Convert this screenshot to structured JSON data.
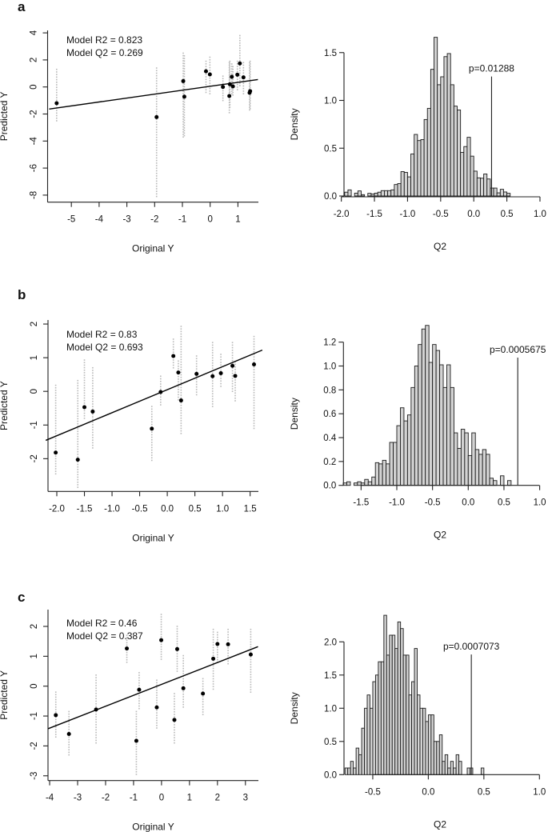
{
  "figure": {
    "panels": [
      {
        "label": "a",
        "scatter": {
          "type": "scatter",
          "xlabel": "Original Y",
          "ylabel": "Predicted Y",
          "xticks": [
            -5,
            -4,
            -3,
            -2,
            -1,
            0,
            1
          ],
          "yticks": [
            4,
            2,
            0,
            -2,
            -4,
            -6,
            -8
          ],
          "xlim": [
            -5.8,
            1.72
          ],
          "ylim": [
            -8.2,
            4.0
          ],
          "annotation_r2": "Model R2 = 0.823",
          "annotation_q2": "Model Q2 = 0.269",
          "regression": {
            "slope": 0.29,
            "intercept": 0.05
          },
          "points": [
            {
              "x": -5.53,
              "y": -1.2,
              "cv_range": [
                -2.5,
                1.3
              ]
            },
            {
              "x": -1.93,
              "y": -2.23,
              "cv_range": [
                -8.1,
                1.4
              ]
            },
            {
              "x": -0.97,
              "y": 0.43,
              "cv_range": [
                -3.7,
                2.5
              ]
            },
            {
              "x": -0.93,
              "y": -0.72,
              "cv_range": [
                -3.6,
                2.3
              ]
            },
            {
              "x": -0.15,
              "y": 1.16,
              "cv_range": [
                -0.4,
                1.9
              ]
            },
            {
              "x": -0.01,
              "y": 0.93,
              "cv_range": [
                -0.5,
                2.2
              ]
            },
            {
              "x": 0.46,
              "y": 0.0,
              "cv_range": [
                -1.0,
                0.8
              ]
            },
            {
              "x": 0.69,
              "y": -0.67,
              "cv_range": [
                -1.9,
                1.8
              ]
            },
            {
              "x": 0.71,
              "y": 0.2,
              "cv_range": [
                -1.5,
                1.9
              ]
            },
            {
              "x": 0.78,
              "y": 0.75,
              "cv_range": [
                -0.5,
                1.7
              ]
            },
            {
              "x": 0.82,
              "y": 0.04,
              "cv_range": [
                -0.6,
                1.5
              ]
            },
            {
              "x": 0.98,
              "y": 0.91,
              "cv_range": [
                -0.2,
                1.9
              ]
            },
            {
              "x": 1.07,
              "y": 1.74,
              "cv_range": [
                0.1,
                3.8
              ]
            },
            {
              "x": 1.2,
              "y": 0.71,
              "cv_range": [
                -0.5,
                1.8
              ]
            },
            {
              "x": 1.42,
              "y": -0.43,
              "cv_range": [
                -1.7,
                1.8
              ]
            },
            {
              "x": 1.44,
              "y": -0.31,
              "cv_range": [
                -1.6,
                1.9
              ]
            }
          ]
        },
        "histogram": {
          "type": "bar",
          "xlabel": "Q2",
          "ylabel": "Density",
          "xticks": [
            "-2.0",
            "-1.5",
            "-1.0",
            "-0.5",
            "0.0",
            "0.5",
            "1.0"
          ],
          "yticks": [
            "0.0",
            "0.5",
            "1.0",
            "1.5"
          ],
          "xlim": [
            -2.0,
            1.0
          ],
          "ylim": [
            0,
            1.5
          ],
          "bin_start": -2.0,
          "bin_width": 0.05,
          "densities": [
            0.0,
            0.04,
            0.064,
            0.0,
            0.03,
            0.053,
            0.014,
            0.0,
            0.028,
            0.02,
            0.03,
            0.04,
            0.056,
            0.056,
            0.056,
            0.064,
            0.12,
            0.13,
            0.255,
            0.247,
            0.2,
            0.44,
            0.644,
            0.58,
            0.59,
            0.8,
            0.917,
            1.325,
            1.66,
            1.164,
            1.247,
            1.458,
            1.49,
            1.164,
            0.94,
            0.9,
            0.456,
            0.517,
            0.614,
            0.417,
            0.26,
            0.19,
            0.186,
            0.23,
            0.178,
            0.083,
            0.083,
            0.033,
            0.07,
            0.042,
            0.028
          ],
          "observed_q2": 0.269,
          "p_line_height": 1.25,
          "p_label": "p=0.01288"
        }
      },
      {
        "label": "b",
        "scatter": {
          "type": "scatter",
          "xlabel": "Original Y",
          "ylabel": "Predicted Y",
          "xticks": [
            "-2.0",
            "-1.5",
            "-1.0",
            "-0.5",
            "0.0",
            "0.5",
            "1.0",
            "1.5"
          ],
          "yticks": [
            2,
            1,
            0,
            -1,
            -2
          ],
          "xlim": [
            -2.2,
            1.72
          ],
          "ylim": [
            -2.95,
            2.1
          ],
          "annotation_r2": "Model R2 = 0.83",
          "annotation_q2": "Model Q2 = 0.693",
          "regression": {
            "slope": 0.684,
            "intercept": 0.05
          },
          "points": [
            {
              "x": -2.02,
              "y": -1.82,
              "cv_range": [
                -2.45,
                0.18
              ]
            },
            {
              "x": -1.62,
              "y": -2.03,
              "cv_range": [
                -2.85,
                0.32
              ]
            },
            {
              "x": -1.5,
              "y": -0.47,
              "cv_range": [
                -0.8,
                0.93
              ]
            },
            {
              "x": -1.35,
              "y": -0.6,
              "cv_range": [
                -1.68,
                0.7
              ]
            },
            {
              "x": -0.28,
              "y": -1.11,
              "cv_range": [
                -2.05,
                -0.45
              ]
            },
            {
              "x": -0.12,
              "y": -0.02,
              "cv_range": [
                -0.4,
                0.45
              ]
            },
            {
              "x": 0.11,
              "y": 1.05,
              "cv_range": [
                0.7,
                1.55
              ]
            },
            {
              "x": 0.2,
              "y": 0.56,
              "cv_range": [
                -0.25,
                0.9
              ]
            },
            {
              "x": 0.25,
              "y": -0.27,
              "cv_range": [
                -1.25,
                1.93
              ]
            },
            {
              "x": 0.53,
              "y": 0.52,
              "cv_range": [
                -0.1,
                1.05
              ]
            },
            {
              "x": 0.82,
              "y": 0.45,
              "cv_range": [
                -0.45,
                1.45
              ]
            },
            {
              "x": 0.97,
              "y": 0.54,
              "cv_range": [
                0.15,
                1.1
              ]
            },
            {
              "x": 1.18,
              "y": 0.76,
              "cv_range": [
                0.0,
                1.45
              ]
            },
            {
              "x": 1.23,
              "y": 0.46,
              "cv_range": [
                -0.28,
                0.88
              ]
            },
            {
              "x": 1.57,
              "y": 0.8,
              "cv_range": [
                -1.1,
                1.63
              ]
            }
          ]
        },
        "histogram": {
          "type": "bar",
          "xlabel": "Q2",
          "ylabel": "Density",
          "xticks": [
            "-1.5",
            "-1.0",
            "-0.5",
            "0.0",
            "0.5",
            "1.0"
          ],
          "yticks": [
            "0.0",
            "0.2",
            "0.4",
            "0.6",
            "0.8",
            "1.0",
            "1.2"
          ],
          "xlim": [
            -1.75,
            1.0
          ],
          "ylim": [
            0,
            1.2
          ],
          "bin_start": -1.75,
          "bin_width": 0.05,
          "densities": [
            0.02,
            0.03,
            0.0,
            0.02,
            0.03,
            0.02,
            0.05,
            0.03,
            0.07,
            0.19,
            0.18,
            0.21,
            0.18,
            0.36,
            0.36,
            0.5,
            0.65,
            0.54,
            0.59,
            0.82,
            1.0,
            1.18,
            1.31,
            1.34,
            1.03,
            1.18,
            1.13,
            1.01,
            0.82,
            1.01,
            0.82,
            0.44,
            0.31,
            0.47,
            0.44,
            0.25,
            0.44,
            0.3,
            0.26,
            0.3,
            0.26,
            0.06,
            0.04,
            0.0,
            0.08,
            0.0,
            0.04
          ],
          "observed_q2": 0.693,
          "p_line_height": 1.07,
          "p_label": "p=0.0005675"
        }
      },
      {
        "label": "c",
        "scatter": {
          "type": "scatter",
          "xlabel": "Original Y",
          "ylabel": "Predicted Y",
          "xticks": [
            -4,
            -3,
            -2,
            -1,
            0,
            1,
            2,
            3
          ],
          "yticks": [
            2,
            1,
            0,
            -1,
            -2,
            -3
          ],
          "xlim": [
            -4.05,
            3.45
          ],
          "ylim": [
            -3.1,
            2.5
          ],
          "annotation_r2": "Model R2 = 0.46",
          "annotation_q2": "Model Q2 = 0.387",
          "regression": {
            "slope": 0.366,
            "intercept": 0.06
          },
          "points": [
            {
              "x": -3.78,
              "y": -0.97,
              "cv_range": [
                -1.7,
                -0.2
              ]
            },
            {
              "x": -3.31,
              "y": -1.6,
              "cv_range": [
                -2.3,
                -0.85
              ]
            },
            {
              "x": -2.34,
              "y": -0.78,
              "cv_range": [
                -1.9,
                0.37
              ]
            },
            {
              "x": -1.24,
              "y": 1.26,
              "cv_range": [
                0.8,
                1.7
              ]
            },
            {
              "x": -0.9,
              "y": -1.83,
              "cv_range": [
                -2.95,
                -0.85
              ]
            },
            {
              "x": -0.8,
              "y": -0.12,
              "cv_range": [
                -0.75,
                0.45
              ]
            },
            {
              "x": -0.17,
              "y": -0.71,
              "cv_range": [
                -1.4,
                0.2
              ]
            },
            {
              "x": -0.01,
              "y": 1.54,
              "cv_range": [
                0.9,
                2.4
              ]
            },
            {
              "x": 0.46,
              "y": -1.13,
              "cv_range": [
                -1.9,
                -0.25
              ]
            },
            {
              "x": 0.56,
              "y": 1.24,
              "cv_range": [
                0.5,
                2.0
              ]
            },
            {
              "x": 0.78,
              "y": -0.07,
              "cv_range": [
                -0.7,
                1.02
              ]
            },
            {
              "x": 1.48,
              "y": -0.25,
              "cv_range": [
                -0.95,
                0.25
              ]
            },
            {
              "x": 1.85,
              "y": 0.92,
              "cv_range": [
                -0.1,
                1.9
              ]
            },
            {
              "x": 2.0,
              "y": 1.41,
              "cv_range": [
                0.8,
                1.8
              ]
            },
            {
              "x": 2.38,
              "y": 1.4,
              "cv_range": [
                0.75,
                1.9
              ]
            },
            {
              "x": 3.19,
              "y": 1.06,
              "cv_range": [
                -0.2,
                1.9
              ]
            }
          ]
        },
        "histogram": {
          "type": "bar",
          "xlabel": "Q2",
          "ylabel": "Density",
          "xticks": [
            "-0.5",
            "0.0",
            "0.5",
            "1.0"
          ],
          "yticks": [
            "0.0",
            "0.5",
            "1.0",
            "1.5",
            "2.0"
          ],
          "xlim": [
            -0.75,
            1.0
          ],
          "ylim": [
            0,
            2.0
          ],
          "bin_start": -0.75,
          "bin_width": 0.025,
          "densities": [
            0.1,
            0.1,
            0.2,
            0.1,
            0.4,
            0.3,
            0.7,
            1.0,
            1.2,
            1.0,
            1.4,
            1.5,
            1.7,
            1.7,
            2.4,
            1.8,
            2.1,
            2.1,
            1.9,
            2.3,
            2.2,
            1.8,
            1.8,
            1.2,
            1.4,
            1.9,
            1.2,
            1.0,
            1.0,
            0.8,
            0.9,
            0.9,
            0.5,
            0.5,
            0.6,
            0.2,
            0.3,
            0.1,
            0.2,
            0.1,
            0.3,
            0.2,
            0.0,
            0.0,
            0.1,
            0.1,
            0.0,
            0.0,
            0.0,
            0.1
          ],
          "observed_q2": 0.387,
          "p_line_height": 1.81,
          "p_label": "p=0.0007073"
        }
      }
    ]
  },
  "chart_data": [
    {
      "type": "scatter",
      "panel": "a",
      "title": "",
      "xlabel": "Original Y",
      "ylabel": "Predicted Y",
      "xlim": [
        -5.8,
        1.72
      ],
      "ylim": [
        -8.2,
        4.0
      ],
      "annotations": [
        "Model R2 = 0.823",
        "Model Q2 = 0.269"
      ],
      "grid": false
    },
    {
      "type": "bar",
      "panel": "a",
      "title": "",
      "xlabel": "Q2",
      "ylabel": "Density",
      "xlim": [
        -2.0,
        1.0
      ],
      "ylim": [
        0,
        1.5
      ],
      "annotations": [
        "p=0.01288"
      ],
      "grid": false
    },
    {
      "type": "scatter",
      "panel": "b",
      "title": "",
      "xlabel": "Original Y",
      "ylabel": "Predicted Y",
      "xlim": [
        -2.2,
        1.72
      ],
      "ylim": [
        -2.95,
        2.1
      ],
      "annotations": [
        "Model R2 = 0.83",
        "Model Q2 = 0.693"
      ],
      "grid": false
    },
    {
      "type": "bar",
      "panel": "b",
      "title": "",
      "xlabel": "Q2",
      "ylabel": "Density",
      "xlim": [
        -1.75,
        1.0
      ],
      "ylim": [
        0,
        1.2
      ],
      "annotations": [
        "p=0.0005675"
      ],
      "grid": false
    },
    {
      "type": "scatter",
      "panel": "c",
      "title": "",
      "xlabel": "Original Y",
      "ylabel": "Predicted Y",
      "xlim": [
        -4.05,
        3.45
      ],
      "ylim": [
        -3.1,
        2.5
      ],
      "annotations": [
        "Model R2 = 0.46",
        "Model Q2 = 0.387"
      ],
      "grid": false
    },
    {
      "type": "bar",
      "panel": "c",
      "title": "",
      "xlabel": "Q2",
      "ylabel": "Density",
      "xlim": [
        -0.75,
        1.0
      ],
      "ylim": [
        0,
        2.0
      ],
      "annotations": [
        "p=0.0007073"
      ],
      "grid": false
    }
  ]
}
